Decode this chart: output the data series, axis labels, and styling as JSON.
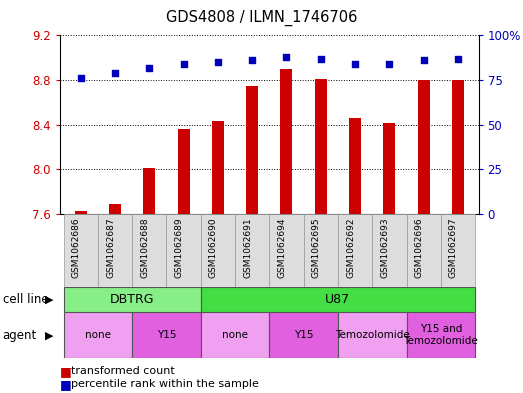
{
  "title": "GDS4808 / ILMN_1746706",
  "samples": [
    "GSM1062686",
    "GSM1062687",
    "GSM1062688",
    "GSM1062689",
    "GSM1062690",
    "GSM1062691",
    "GSM1062694",
    "GSM1062695",
    "GSM1062692",
    "GSM1062693",
    "GSM1062696",
    "GSM1062697"
  ],
  "transformed_count": [
    7.63,
    7.69,
    8.01,
    8.36,
    8.43,
    8.75,
    8.9,
    8.81,
    8.46,
    8.42,
    8.8,
    8.8
  ],
  "percentile_rank": [
    76,
    79,
    82,
    84,
    85,
    86,
    88,
    87,
    84,
    84,
    86,
    87
  ],
  "bar_color": "#cc0000",
  "dot_color": "#0000bb",
  "ylim_left": [
    7.6,
    9.2
  ],
  "ylim_right": [
    0,
    100
  ],
  "yticks_left": [
    7.6,
    8.0,
    8.4,
    8.8,
    9.2
  ],
  "yticks_right": [
    0,
    25,
    50,
    75,
    100
  ],
  "yticklabels_right": [
    "0",
    "25",
    "50",
    "75",
    "100%"
  ],
  "cell_line_groups": [
    {
      "label": "DBTRG",
      "start": 0,
      "end": 3,
      "color": "#88ee88"
    },
    {
      "label": "U87",
      "start": 4,
      "end": 11,
      "color": "#44dd44"
    }
  ],
  "agent_groups": [
    {
      "label": "none",
      "start": 0,
      "end": 1,
      "color": "#f0a0f0"
    },
    {
      "label": "Y15",
      "start": 2,
      "end": 3,
      "color": "#e060e0"
    },
    {
      "label": "none",
      "start": 4,
      "end": 5,
      "color": "#f0a0f0"
    },
    {
      "label": "Y15",
      "start": 6,
      "end": 7,
      "color": "#e060e0"
    },
    {
      "label": "Temozolomide",
      "start": 8,
      "end": 9,
      "color": "#f0a0f0"
    },
    {
      "label": "Y15 and\nTemozolomide",
      "start": 10,
      "end": 11,
      "color": "#e060e0"
    }
  ],
  "legend_items": [
    {
      "label": "transformed count",
      "color": "#cc0000"
    },
    {
      "label": "percentile rank within the sample",
      "color": "#0000bb"
    }
  ],
  "bar_width": 0.35,
  "xtick_bg": "#dddddd"
}
